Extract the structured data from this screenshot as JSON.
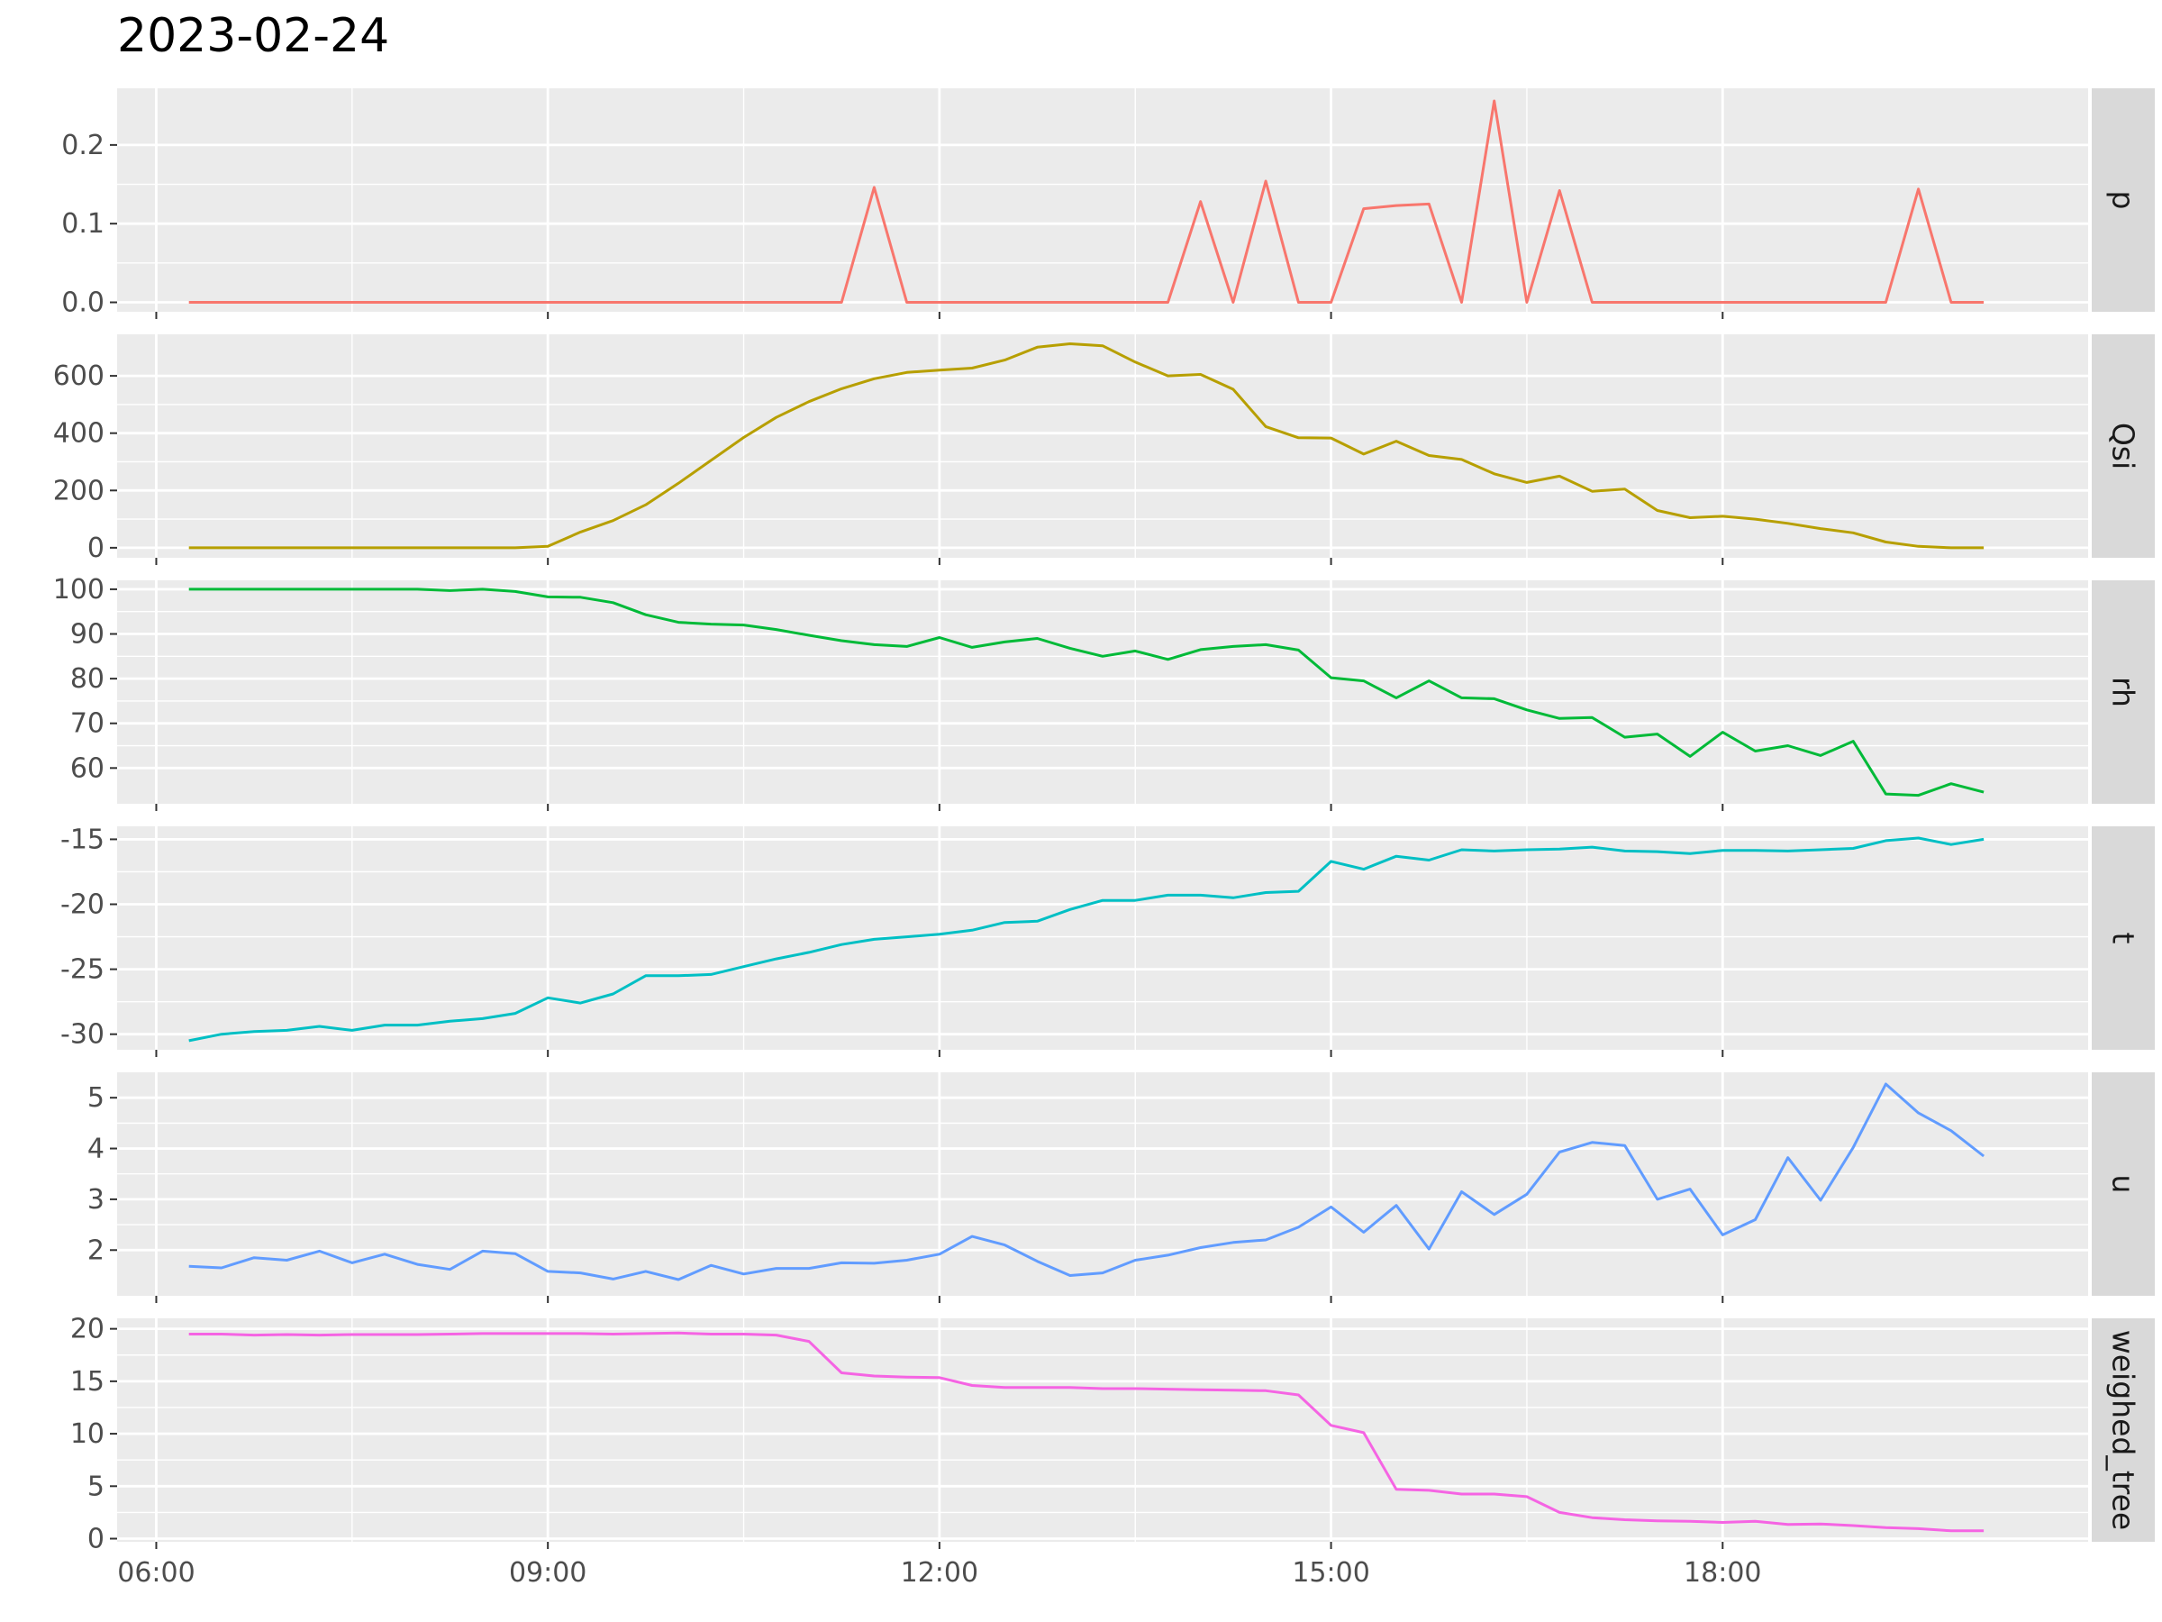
{
  "chart_data": {
    "type": "line",
    "title": "2023-02-24",
    "xlabel": "",
    "ylabel": "",
    "x_tick_labels": [
      "06:00",
      "09:00",
      "12:00",
      "15:00",
      "18:00"
    ],
    "x_ticks_hours": [
      6,
      9,
      12,
      15,
      18
    ],
    "xlim_hours": [
      5.7,
      20.8
    ],
    "x": [
      "06:15",
      "06:30",
      "06:45",
      "07:00",
      "07:15",
      "07:30",
      "07:45",
      "08:00",
      "08:15",
      "08:30",
      "08:45",
      "09:00",
      "09:15",
      "09:30",
      "09:45",
      "10:00",
      "10:15",
      "10:30",
      "10:45",
      "11:00",
      "11:15",
      "11:30",
      "11:45",
      "12:00",
      "12:15",
      "12:30",
      "12:45",
      "13:00",
      "13:15",
      "13:30",
      "13:45",
      "14:00",
      "14:15",
      "14:30",
      "14:45",
      "15:00",
      "15:15",
      "15:30",
      "15:45",
      "16:00",
      "16:15",
      "16:30",
      "16:45",
      "17:00",
      "17:15",
      "17:30",
      "17:45",
      "18:00",
      "18:15",
      "18:30",
      "18:45",
      "19:00",
      "19:15",
      "19:30",
      "19:45",
      "20:00"
    ],
    "grid": true,
    "legend": "none",
    "series": [
      {
        "name": "p",
        "color": "#F8766D",
        "ylim": [
          -0.012,
          0.272
        ],
        "y_ticks": [
          0.0,
          0.1,
          0.2
        ],
        "y_tick_labels": [
          "0.0",
          "0.1",
          "0.2"
        ],
        "values": [
          0,
          0,
          0,
          0,
          0,
          0,
          0,
          0,
          0,
          0,
          0,
          0,
          0,
          0,
          0,
          0,
          0,
          0,
          0,
          0,
          0,
          0.146,
          0,
          0,
          0,
          0,
          0,
          0,
          0,
          0,
          0,
          0.128,
          0,
          0.154,
          0,
          0,
          0.119,
          0.123,
          0.125,
          0,
          0.256,
          0,
          0.142,
          0,
          0,
          0,
          0,
          0,
          0,
          0,
          0,
          0,
          0,
          0.144,
          0,
          0
        ]
      },
      {
        "name": "Qsi",
        "color": "#B79F00",
        "ylim": [
          -35,
          745
        ],
        "y_ticks": [
          0,
          200,
          400,
          600
        ],
        "y_tick_labels": [
          "0",
          "200",
          "400",
          "600"
        ],
        "values": [
          0,
          0,
          0,
          0,
          0,
          0,
          0,
          0,
          0,
          0,
          0,
          5,
          55,
          95,
          150,
          225,
          305,
          385,
          455,
          510,
          555,
          590,
          612,
          620,
          627,
          655,
          700,
          712,
          705,
          648,
          600,
          605,
          553,
          423,
          384,
          383,
          327,
          372,
          322,
          308,
          258,
          228,
          250,
          197,
          205,
          130,
          105,
          110,
          100,
          85,
          67,
          52,
          20,
          5,
          0,
          0
        ]
      },
      {
        "name": "rh",
        "color": "#00BA38",
        "ylim": [
          52,
          102
        ],
        "y_ticks": [
          60,
          70,
          80,
          90,
          100
        ],
        "y_tick_labels": [
          "60",
          "70",
          "80",
          "90",
          "100"
        ],
        "values": [
          100,
          100,
          100,
          100,
          100,
          100,
          100,
          100,
          99.7,
          100,
          99.5,
          98.3,
          98.2,
          97,
          94.3,
          92.6,
          92.2,
          92,
          91,
          89.7,
          88.5,
          87.6,
          87.2,
          89.2,
          87,
          88.2,
          89,
          86.8,
          85,
          86.2,
          84.3,
          86.5,
          87.2,
          87.6,
          86.4,
          80.2,
          79.5,
          75.7,
          79.5,
          75.7,
          75.5,
          73,
          71.1,
          71.3,
          66.9,
          67.6,
          62.6,
          68,
          63.8,
          65,
          62.8,
          66,
          54.2,
          53.9,
          56.5,
          54.6
        ]
      },
      {
        "name": "t",
        "color": "#00BFC4",
        "ylim": [
          -31.2,
          -14.0
        ],
        "y_ticks": [
          -30,
          -25,
          -20,
          -15
        ],
        "y_tick_labels": [
          "-30",
          "-25",
          "-20",
          "-15"
        ],
        "values": [
          -30.5,
          -30,
          -29.8,
          -29.7,
          -29.4,
          -29.7,
          -29.3,
          -29.3,
          -29,
          -28.8,
          -28.4,
          -27.2,
          -27.6,
          -26.9,
          -25.5,
          -25.5,
          -25.4,
          -24.8,
          -24.2,
          -23.7,
          -23.1,
          -22.7,
          -22.5,
          -22.3,
          -22,
          -21.4,
          -21.3,
          -20.4,
          -19.7,
          -19.7,
          -19.3,
          -19.3,
          -19.5,
          -19.1,
          -19,
          -16.7,
          -17.3,
          -16.3,
          -16.6,
          -15.8,
          -15.9,
          -15.8,
          -15.75,
          -15.6,
          -15.9,
          -15.95,
          -16.1,
          -15.85,
          -15.85,
          -15.9,
          -15.8,
          -15.7,
          -15.1,
          -14.9,
          -15.4,
          -15
        ]
      },
      {
        "name": "u",
        "color": "#619CFF",
        "ylim": [
          1.1,
          5.5
        ],
        "y_ticks": [
          2,
          3,
          4,
          5
        ],
        "y_tick_labels": [
          "2",
          "3",
          "4",
          "5"
        ],
        "values": [
          1.68,
          1.65,
          1.85,
          1.8,
          1.98,
          1.75,
          1.92,
          1.72,
          1.62,
          1.98,
          1.93,
          1.58,
          1.55,
          1.43,
          1.58,
          1.42,
          1.7,
          1.53,
          1.64,
          1.64,
          1.75,
          1.74,
          1.8,
          1.92,
          2.27,
          2.1,
          1.78,
          1.5,
          1.55,
          1.8,
          1.9,
          2.05,
          2.15,
          2.2,
          2.45,
          2.85,
          2.35,
          2.88,
          2.02,
          3.15,
          2.7,
          3.1,
          3.93,
          4.12,
          4.06,
          3.0,
          3.2,
          2.3,
          2.6,
          3.82,
          2.98,
          4.02,
          5.27,
          4.7,
          4.35,
          3.85
        ]
      },
      {
        "name": "weighed_tree",
        "color": "#F564E3",
        "ylim": [
          -0.3,
          21.0
        ],
        "y_ticks": [
          0,
          5,
          10,
          15,
          20
        ],
        "y_tick_labels": [
          "0",
          "5",
          "10",
          "15",
          "20"
        ],
        "values": [
          19.5,
          19.5,
          19.4,
          19.45,
          19.4,
          19.45,
          19.45,
          19.45,
          19.5,
          19.55,
          19.55,
          19.55,
          19.55,
          19.5,
          19.55,
          19.6,
          19.5,
          19.5,
          19.4,
          18.8,
          15.8,
          15.5,
          15.4,
          15.35,
          14.6,
          14.4,
          14.4,
          14.4,
          14.3,
          14.3,
          14.25,
          14.2,
          14.15,
          14.1,
          13.7,
          10.8,
          10.1,
          4.7,
          4.6,
          4.25,
          4.25,
          4.0,
          2.5,
          2.0,
          1.8,
          1.7,
          1.65,
          1.55,
          1.65,
          1.35,
          1.4,
          1.25,
          1.05,
          0.95,
          0.75,
          0.75
        ]
      }
    ]
  }
}
